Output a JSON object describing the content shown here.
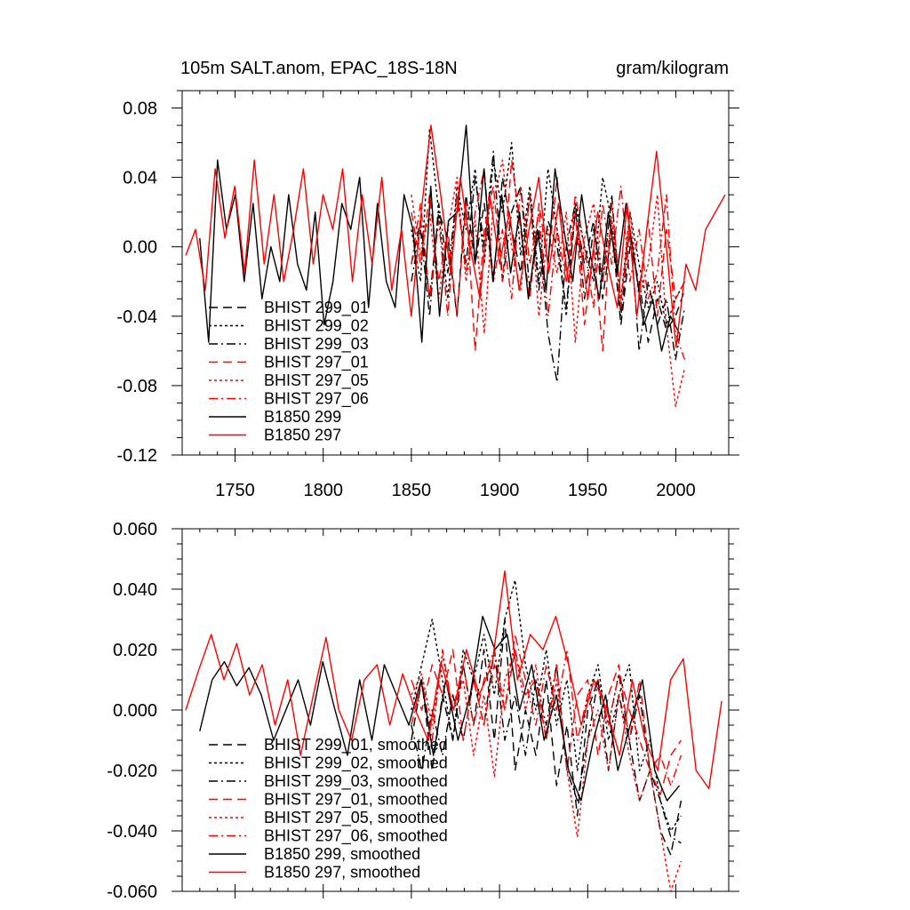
{
  "chart_data": [
    {
      "type": "line",
      "title_left": "105m SALT.anom, EPAC_18S-18N",
      "title_right": "gram/kilogram",
      "xlabel": "",
      "ylabel": "",
      "xlim": [
        1720,
        2030
      ],
      "ylim": [
        -0.12,
        0.09
      ],
      "x_ticks": [
        1750,
        1800,
        1850,
        1900,
        1950,
        2000
      ],
      "x_tick_labels": [
        "1750",
        "1800",
        "1850",
        "1900",
        "1950",
        "2000"
      ],
      "y_ticks": [
        -0.12,
        -0.08,
        -0.04,
        0.0,
        0.04,
        0.08
      ],
      "y_tick_labels": [
        "-0.12",
        "-0.08",
        "-0.04",
        "0.00",
        "0.04",
        "0.08"
      ],
      "legend_position": "lower-left",
      "series": [
        {
          "name": "BHIST 299_01",
          "color": "#000000",
          "dash": "dashed",
          "x_start": 1850,
          "x_end": 2005,
          "values": [
            -0.01,
            0.015,
            -0.03,
            0.02,
            0.005,
            -0.04,
            0.03,
            -0.01,
            0.025,
            -0.02,
            0.04,
            0.01,
            -0.015,
            0.03,
            -0.025,
            0.015,
            0.0,
            -0.035,
            0.02,
            -0.01,
            0.015,
            -0.03,
            0.01,
            -0.045,
            0.0,
            -0.02,
            -0.055,
            -0.03,
            -0.048,
            -0.04,
            -0.025
          ]
        },
        {
          "name": "BHIST 299_02",
          "color": "#000000",
          "dash": "dotted",
          "x_start": 1850,
          "x_end": 2005,
          "values": [
            0.01,
            -0.02,
            0.068,
            0.02,
            -0.03,
            0.035,
            0.01,
            0.045,
            -0.01,
            0.05,
            0.02,
            0.06,
            -0.005,
            0.035,
            -0.02,
            0.045,
            0.01,
            -0.04,
            0.025,
            0.0,
            -0.02,
            0.04,
            0.015,
            -0.03,
            0.02,
            -0.01,
            -0.035,
            -0.02,
            -0.045,
            -0.03,
            -0.02
          ]
        },
        {
          "name": "BHIST 299_03",
          "color": "#000000",
          "dash": "dashdot",
          "x_start": 1850,
          "x_end": 2005,
          "values": [
            -0.02,
            0.01,
            -0.04,
            0.025,
            -0.015,
            0.03,
            -0.01,
            0.04,
            0.0,
            0.055,
            -0.02,
            0.02,
            0.035,
            -0.025,
            0.01,
            -0.05,
            -0.078,
            0.0,
            0.025,
            -0.03,
            0.01,
            -0.02,
            0.03,
            -0.04,
            0.01,
            -0.06,
            -0.02,
            -0.045,
            -0.03,
            -0.065,
            -0.035
          ]
        },
        {
          "name": "BHIST 297_01",
          "color": "#ff0000",
          "dash": "dashed",
          "x_start": 1850,
          "x_end": 2005,
          "values": [
            0.02,
            -0.01,
            0.03,
            -0.02,
            0.01,
            -0.04,
            0.025,
            -0.06,
            0.01,
            0.035,
            -0.02,
            0.05,
            0.01,
            -0.03,
            0.025,
            -0.01,
            0.04,
            -0.02,
            0.02,
            -0.045,
            0.0,
            -0.06,
            0.025,
            -0.03,
            0.01,
            -0.025,
            0.015,
            -0.04,
            0.01,
            -0.03,
            -0.02
          ]
        },
        {
          "name": "BHIST 297_05",
          "color": "#ff0000",
          "dash": "dotted",
          "x_start": 1850,
          "x_end": 2005,
          "values": [
            0.03,
            -0.005,
            0.02,
            -0.03,
            0.01,
            0.04,
            -0.02,
            0.015,
            -0.05,
            0.025,
            0.05,
            0.0,
            -0.025,
            0.03,
            -0.04,
            0.01,
            -0.015,
            0.02,
            -0.055,
            0.005,
            0.025,
            -0.02,
            0.015,
            -0.035,
            0.02,
            -0.03,
            -0.01,
            0.03,
            -0.045,
            -0.092,
            -0.07
          ]
        },
        {
          "name": "BHIST 297_06",
          "color": "#ff0000",
          "dash": "dashdot",
          "x_start": 1850,
          "x_end": 2005,
          "values": [
            -0.01,
            0.025,
            -0.03,
            0.015,
            -0.04,
            0.03,
            -0.015,
            0.02,
            0.045,
            -0.02,
            0.01,
            -0.03,
            0.035,
            -0.01,
            0.02,
            -0.04,
            0.01,
            -0.02,
            0.03,
            0.0,
            -0.035,
            0.025,
            -0.01,
            0.035,
            -0.02,
            0.01,
            -0.03,
            -0.015,
            0.03,
            -0.05,
            -0.065
          ]
        },
        {
          "name": "B1850 299",
          "color": "#000000",
          "dash": "solid",
          "x_start": 1730,
          "x_end": 2002,
          "values": [
            0.005,
            -0.055,
            0.05,
            0.01,
            0.03,
            -0.02,
            0.025,
            -0.03,
            0.0,
            -0.02,
            0.03,
            -0.01,
            -0.025,
            0.02,
            -0.045,
            -0.02,
            0.025,
            0.01,
            0.04,
            -0.035,
            0.025,
            -0.02,
            -0.035,
            0.03,
            0.01,
            -0.055,
            0.035,
            -0.04,
            0.015,
            0.02,
            0.07,
            -0.01,
            0.045,
            -0.02,
            0.03,
            -0.015,
            0.02,
            -0.03,
            0.01,
            -0.025,
            0.045,
            0.01,
            -0.02,
            0.03,
            -0.005,
            -0.03,
            0.02,
            -0.015,
            0.025,
            -0.01,
            -0.045,
            -0.03,
            -0.06,
            -0.04,
            -0.05
          ]
        },
        {
          "name": "B1850 297",
          "color": "#ff0000",
          "dash": "solid",
          "x_start": 1722,
          "x_end": 2028,
          "values": [
            -0.005,
            0.01,
            -0.025,
            0.045,
            0.005,
            0.035,
            -0.015,
            0.05,
            -0.01,
            0.03,
            -0.02,
            0.01,
            0.045,
            -0.01,
            0.03,
            0.01,
            0.045,
            -0.02,
            0.03,
            -0.01,
            0.04,
            -0.025,
            0.01,
            -0.04,
            0.02,
            0.07,
            0.03,
            -0.015,
            0.04,
            0.0,
            -0.03,
            0.03,
            -0.01,
            0.02,
            -0.025,
            0.01,
            0.04,
            -0.015,
            0.025,
            -0.02,
            0.01,
            -0.03,
            0.02,
            -0.01,
            -0.035,
            0.025,
            -0.04,
            0.01,
            0.055,
            0.0,
            -0.058,
            -0.01,
            -0.025,
            0.01,
            0.02,
            0.03
          ]
        }
      ]
    },
    {
      "type": "line",
      "title_left": "",
      "title_right": "",
      "xlabel": "",
      "ylabel": "",
      "xlim": [
        1720,
        2030
      ],
      "ylim": [
        -0.06,
        0.06
      ],
      "x_ticks": [
        1750,
        1800,
        1850,
        1900,
        1950,
        2000
      ],
      "x_tick_labels": [],
      "y_ticks": [
        -0.06,
        -0.04,
        -0.02,
        0.0,
        0.02,
        0.04,
        0.06
      ],
      "y_tick_labels": [
        "-0.060",
        "-0.040",
        "-0.020",
        "0.000",
        "0.020",
        "0.040",
        "0.060"
      ],
      "legend_position": "lower-left",
      "series": [
        {
          "name": "BHIST 299_01, smoothed",
          "color": "#000000",
          "dash": "dashed",
          "x_start": 1850,
          "x_end": 2003,
          "values": [
            -0.01,
            0.01,
            -0.02,
            0.005,
            -0.01,
            0.015,
            -0.005,
            0.02,
            -0.01,
            0.03,
            -0.02,
            0.0,
            -0.015,
            0.01,
            -0.025,
            -0.005,
            -0.035,
            0.0,
            0.01,
            -0.02,
            0.005,
            -0.01,
            -0.03,
            -0.02,
            -0.04,
            -0.048,
            -0.03
          ]
        },
        {
          "name": "BHIST 299_02, smoothed",
          "color": "#000000",
          "dash": "dotted",
          "x_start": 1850,
          "x_end": 2003,
          "values": [
            0.0,
            0.015,
            0.03,
            0.01,
            -0.01,
            0.02,
            0.01,
            0.025,
            0.005,
            0.03,
            0.043,
            0.015,
            0.0,
            0.02,
            -0.005,
            0.01,
            -0.02,
            0.005,
            0.015,
            -0.01,
            0.005,
            0.015,
            -0.02,
            -0.01,
            -0.03,
            -0.04,
            -0.035
          ]
        },
        {
          "name": "BHIST 299_03, smoothed",
          "color": "#000000",
          "dash": "dashdot",
          "x_start": 1850,
          "x_end": 2003,
          "values": [
            -0.005,
            -0.02,
            0.0,
            -0.015,
            0.005,
            -0.01,
            0.01,
            -0.005,
            0.02,
            -0.01,
            0.005,
            -0.015,
            0.01,
            -0.005,
            0.015,
            -0.02,
            -0.03,
            -0.01,
            0.01,
            -0.005,
            0.012,
            -0.01,
            0.005,
            -0.02,
            -0.03,
            -0.042,
            -0.044
          ]
        },
        {
          "name": "BHIST 297_01, smoothed",
          "color": "#ff0000",
          "dash": "dashed",
          "x_start": 1850,
          "x_end": 2003,
          "values": [
            0.01,
            0.0,
            0.015,
            0.005,
            0.02,
            -0.01,
            0.01,
            -0.005,
            0.015,
            0.0,
            0.02,
            0.005,
            0.01,
            -0.01,
            0.015,
            -0.02,
            0.005,
            0.01,
            -0.015,
            0.005,
            0.015,
            -0.01,
            0.01,
            -0.02,
            -0.028,
            -0.015,
            -0.01
          ]
        },
        {
          "name": "BHIST 297_05, smoothed",
          "color": "#ff0000",
          "dash": "dotted",
          "x_start": 1850,
          "x_end": 2003,
          "values": [
            0.005,
            0.012,
            -0.005,
            0.018,
            0.0,
            0.01,
            -0.015,
            0.005,
            -0.022,
            0.01,
            0.02,
            0.0,
            0.015,
            -0.01,
            0.01,
            -0.02,
            -0.042,
            -0.01,
            0.0,
            -0.02,
            0.005,
            -0.015,
            -0.03,
            -0.02,
            -0.04,
            -0.06,
            -0.05
          ]
        },
        {
          "name": "BHIST 297_06, smoothed",
          "color": "#ff0000",
          "dash": "dashdot",
          "x_start": 1850,
          "x_end": 2003,
          "values": [
            -0.005,
            0.01,
            -0.01,
            0.02,
            0.0,
            0.015,
            -0.005,
            0.01,
            0.02,
            0.0,
            0.025,
            0.01,
            -0.005,
            0.015,
            0.0,
            0.02,
            -0.01,
            0.005,
            0.01,
            -0.005,
            0.012,
            0.0,
            -0.01,
            -0.02,
            -0.015,
            -0.025,
            -0.015
          ]
        },
        {
          "name": "B1850 299, smoothed",
          "color": "#000000",
          "dash": "solid",
          "x_start": 1730,
          "x_end": 2002,
          "values": [
            -0.007,
            0.01,
            0.016,
            0.008,
            0.014,
            0.005,
            -0.01,
            0.0,
            0.01,
            -0.005,
            0.016,
            0.0,
            -0.015,
            0.01,
            -0.01,
            0.015,
            0.005,
            -0.005,
            0.01,
            -0.015,
            0.01,
            -0.01,
            0.005,
            0.031,
            0.02,
            0.025,
            0.0,
            0.015,
            -0.01,
            0.005,
            -0.02,
            -0.03,
            -0.01,
            0.005,
            -0.02,
            -0.005,
            0.01,
            -0.02,
            -0.03,
            -0.025
          ]
        },
        {
          "name": "B1850 297, smoothed",
          "color": "#ff0000",
          "dash": "solid",
          "x_start": 1722,
          "x_end": 2026,
          "values": [
            0.0,
            0.013,
            0.025,
            0.01,
            0.022,
            0.005,
            0.015,
            -0.005,
            0.01,
            -0.015,
            0.005,
            0.024,
            0.0,
            -0.01,
            0.01,
            0.015,
            -0.005,
            0.012,
            0.0,
            -0.01,
            0.016,
            0.0,
            0.02,
            0.005,
            0.015,
            0.046,
            0.01,
            0.025,
            0.02,
            0.031,
            0.015,
            -0.005,
            0.01,
            0.0,
            -0.015,
            0.01,
            -0.01,
            -0.02,
            0.01,
            0.017,
            -0.02,
            -0.026,
            0.003
          ]
        }
      ]
    }
  ]
}
